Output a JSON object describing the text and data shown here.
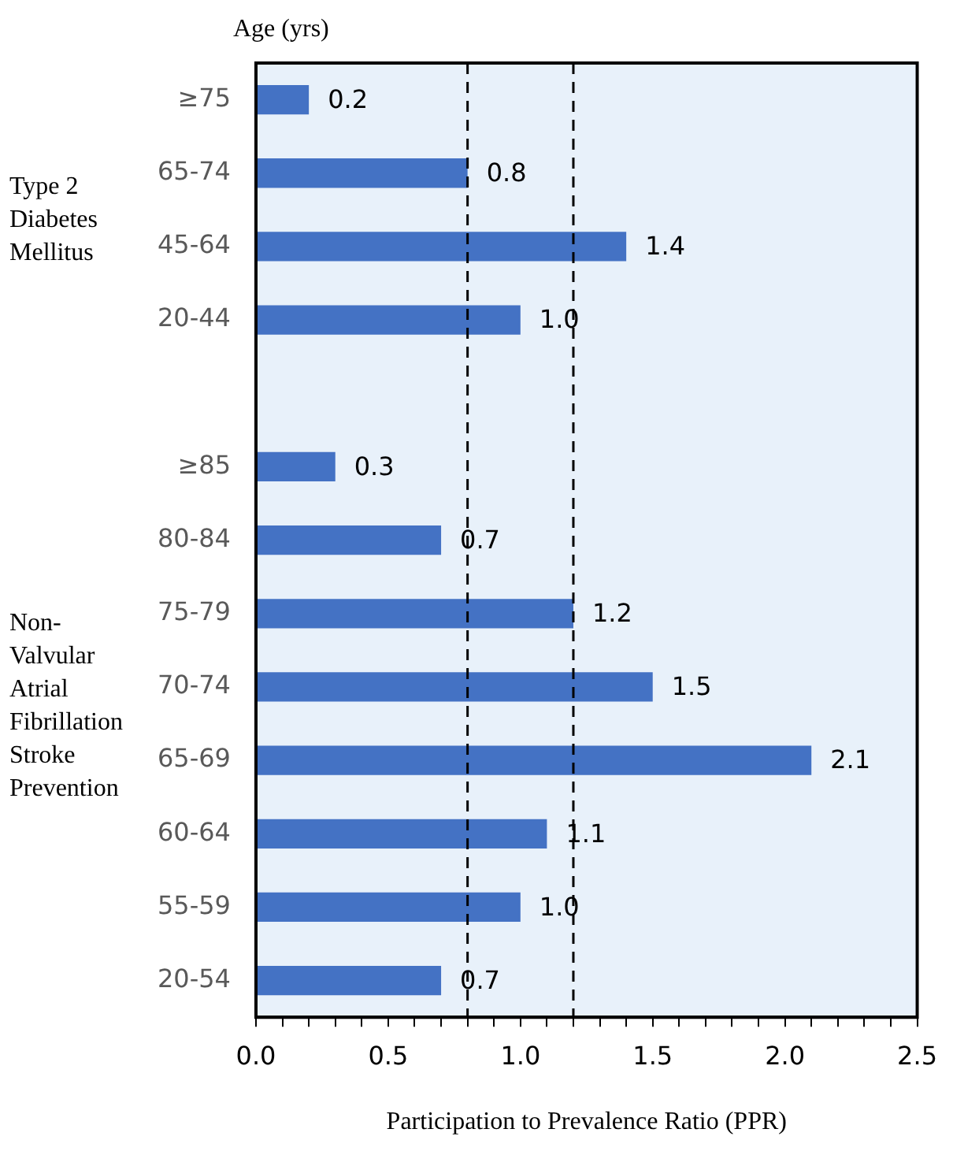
{
  "chart_data": {
    "type": "bar",
    "orientation": "horizontal",
    "ylabel": "Age (yrs)",
    "xlabel": "Participation to Prevalence Ratio (PPR)",
    "categories": [
      "≥75",
      "65-74",
      "45-64",
      "20-44",
      null,
      "≥85",
      "80-84",
      "75-79",
      "70-74",
      "65-69",
      "60-64",
      "55-59",
      "20-54"
    ],
    "values": [
      0.2,
      0.8,
      1.4,
      1.0,
      null,
      0.3,
      0.7,
      1.2,
      1.5,
      2.1,
      1.1,
      1.0,
      0.7
    ],
    "value_labels": [
      "0.2",
      "0.8",
      "1.4",
      "1.0",
      null,
      "0.3",
      "0.7",
      "1.2",
      "1.5",
      "2.1",
      "1.1",
      "1.0",
      "0.7"
    ],
    "color": "#4472c4",
    "xlim": [
      0,
      2.5
    ],
    "xticks": [
      {
        "value": 0,
        "label": "0.0"
      },
      {
        "value": 0.1,
        "label": null
      },
      {
        "value": 0.2,
        "label": null
      },
      {
        "value": 0.3,
        "label": null
      },
      {
        "value": 0.4,
        "label": null
      },
      {
        "value": 0.5,
        "label": "0.5"
      },
      {
        "value": 0.6,
        "label": null
      },
      {
        "value": 0.7,
        "label": null
      },
      {
        "value": 0.8,
        "label": null
      },
      {
        "value": 0.9,
        "label": null
      },
      {
        "value": 1,
        "label": "1.0"
      },
      {
        "value": 1.1,
        "label": null
      },
      {
        "value": 1.2,
        "label": null
      },
      {
        "value": 1.3,
        "label": null
      },
      {
        "value": 1.4,
        "label": null
      },
      {
        "value": 1.5,
        "label": "1.5"
      },
      {
        "value": 1.6,
        "label": null
      },
      {
        "value": 1.7,
        "label": null
      },
      {
        "value": 1.8,
        "label": null
      },
      {
        "value": 1.9,
        "label": null
      },
      {
        "value": 2,
        "label": "2.0"
      },
      {
        "value": 2.1,
        "label": null
      },
      {
        "value": 2.2,
        "label": null
      },
      {
        "value": 2.3,
        "label": null
      },
      {
        "value": 2.4,
        "label": null
      },
      {
        "value": 2.5,
        "label": "2.5"
      }
    ],
    "ref_lines": [
      {
        "axis": "x",
        "value": 0.8,
        "color": "#000000",
        "line_style": "dashed"
      },
      {
        "axis": "x",
        "value": 1.2,
        "color": "#000000",
        "line_style": "dashed"
      }
    ],
    "annotations": [
      "Type 2 Diabetes Mellitus",
      "Non-Valvular Atrial Fibrillation Stroke Prevention"
    ],
    "grid": false,
    "legend": false
  }
}
